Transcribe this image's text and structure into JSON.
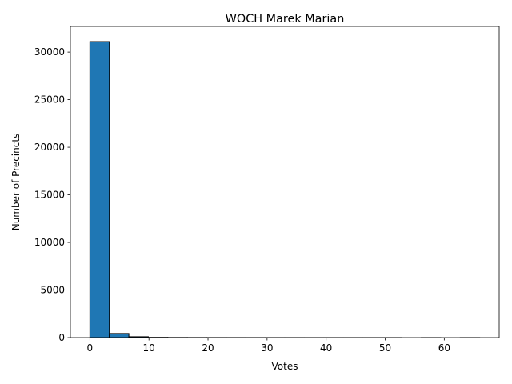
{
  "chart_data": {
    "type": "bar",
    "title": "WOCH Marek Marian",
    "xlabel": "Votes",
    "ylabel": "Number of Precincts",
    "xlim": [
      -3.3,
      69.3
    ],
    "ylim": [
      0,
      32700
    ],
    "xticks": [
      0,
      10,
      20,
      30,
      40,
      50,
      60
    ],
    "yticks": [
      0,
      5000,
      10000,
      15000,
      20000,
      25000,
      30000
    ],
    "bins": [
      {
        "x0": 0.0,
        "x1": 3.3,
        "count": 31100
      },
      {
        "x0": 3.3,
        "x1": 6.6,
        "count": 430
      },
      {
        "x0": 6.6,
        "x1": 9.9,
        "count": 90
      },
      {
        "x0": 9.9,
        "x1": 13.2,
        "count": 25
      },
      {
        "x0": 13.2,
        "x1": 16.5,
        "count": 12
      },
      {
        "x0": 16.5,
        "x1": 19.8,
        "count": 8
      },
      {
        "x0": 19.8,
        "x1": 23.1,
        "count": 5
      },
      {
        "x0": 23.1,
        "x1": 26.4,
        "count": 4
      },
      {
        "x0": 26.4,
        "x1": 29.7,
        "count": 3
      },
      {
        "x0": 29.7,
        "x1": 33.0,
        "count": 2
      },
      {
        "x0": 33.0,
        "x1": 36.3,
        "count": 2
      },
      {
        "x0": 36.3,
        "x1": 39.6,
        "count": 1
      },
      {
        "x0": 39.6,
        "x1": 42.9,
        "count": 1
      },
      {
        "x0": 42.9,
        "x1": 46.2,
        "count": 1
      },
      {
        "x0": 46.2,
        "x1": 49.5,
        "count": 1
      },
      {
        "x0": 49.5,
        "x1": 52.8,
        "count": 1
      },
      {
        "x0": 52.8,
        "x1": 56.1,
        "count": 0
      },
      {
        "x0": 56.1,
        "x1": 59.4,
        "count": 1
      },
      {
        "x0": 59.4,
        "x1": 62.7,
        "count": 0
      },
      {
        "x0": 62.7,
        "x1": 66.0,
        "count": 1
      }
    ],
    "bar_color": "#1f77b4",
    "edge_color": "#000000",
    "grid": false,
    "legend": "none"
  }
}
